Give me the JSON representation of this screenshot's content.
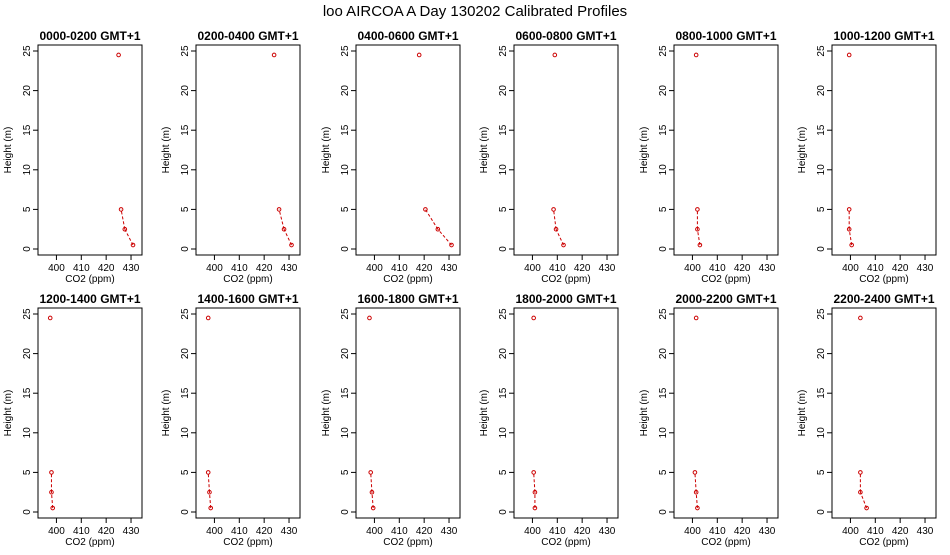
{
  "title": "loo AIRCOA A  Day 130202  Calibrated Profiles",
  "colors": {
    "series": "#cc0000",
    "axis": "#000000",
    "background": "#ffffff"
  },
  "chart_data": [
    {
      "type": "line",
      "title": "0000-0200 GMT+1",
      "xlabel": "CO2 (ppm)",
      "ylabel": "Height (m)",
      "xlim": [
        395,
        432
      ],
      "ylim": [
        0,
        25
      ],
      "xticks": [
        400,
        410,
        420,
        430
      ],
      "yticks": [
        0,
        5,
        10,
        15,
        20,
        25
      ],
      "x": [
        430.8,
        427.5,
        426.0,
        425.0
      ],
      "y": [
        0.5,
        2.5,
        5.0,
        24.5
      ],
      "connect": [
        [
          0,
          1
        ],
        [
          1,
          2
        ]
      ]
    },
    {
      "type": "line",
      "title": "0200-0400 GMT+1",
      "xlabel": "CO2 (ppm)",
      "ylabel": "Height (m)",
      "xlim": [
        395,
        432
      ],
      "ylim": [
        0,
        25
      ],
      "xticks": [
        400,
        410,
        420,
        430
      ],
      "yticks": [
        0,
        5,
        10,
        15,
        20,
        25
      ],
      "x": [
        431.0,
        428.0,
        426.0,
        424.0
      ],
      "y": [
        0.5,
        2.5,
        5.0,
        24.5
      ],
      "connect": [
        [
          0,
          1
        ],
        [
          1,
          2
        ]
      ]
    },
    {
      "type": "line",
      "title": "0400-0600 GMT+1",
      "xlabel": "CO2 (ppm)",
      "ylabel": "Height (m)",
      "xlim": [
        395,
        432
      ],
      "ylim": [
        0,
        25
      ],
      "xticks": [
        400,
        410,
        420,
        430
      ],
      "yticks": [
        0,
        5,
        10,
        15,
        20,
        25
      ],
      "x": [
        431.0,
        425.5,
        420.5,
        418.0
      ],
      "y": [
        0.5,
        2.5,
        5.0,
        24.5
      ],
      "connect": [
        [
          0,
          1
        ],
        [
          1,
          2
        ]
      ]
    },
    {
      "type": "line",
      "title": "0600-0800 GMT+1",
      "xlabel": "CO2 (ppm)",
      "ylabel": "Height (m)",
      "xlim": [
        395,
        432
      ],
      "ylim": [
        0,
        25
      ],
      "xticks": [
        400,
        410,
        420,
        430
      ],
      "yticks": [
        0,
        5,
        10,
        15,
        20,
        25
      ],
      "x": [
        412.5,
        409.5,
        408.5,
        409.0
      ],
      "y": [
        0.5,
        2.5,
        5.0,
        24.5
      ],
      "connect": [
        [
          0,
          1
        ],
        [
          1,
          2
        ]
      ]
    },
    {
      "type": "line",
      "title": "0800-1000 GMT+1",
      "xlabel": "CO2 (ppm)",
      "ylabel": "Height (m)",
      "xlim": [
        395,
        432
      ],
      "ylim": [
        0,
        25
      ],
      "xticks": [
        400,
        410,
        420,
        430
      ],
      "yticks": [
        0,
        5,
        10,
        15,
        20,
        25
      ],
      "x": [
        403.0,
        402.0,
        402.0,
        401.5
      ],
      "y": [
        0.5,
        2.5,
        5.0,
        24.5
      ],
      "connect": [
        [
          0,
          1
        ],
        [
          1,
          2
        ]
      ]
    },
    {
      "type": "line",
      "title": "1000-1200 GMT+1",
      "xlabel": "CO2 (ppm)",
      "ylabel": "Height (m)",
      "xlim": [
        395,
        432
      ],
      "ylim": [
        0,
        25
      ],
      "xticks": [
        400,
        410,
        420,
        430
      ],
      "yticks": [
        0,
        5,
        10,
        15,
        20,
        25
      ],
      "x": [
        400.5,
        399.5,
        399.5,
        399.5
      ],
      "y": [
        0.5,
        2.5,
        5.0,
        24.5
      ],
      "connect": [
        [
          0,
          1
        ],
        [
          1,
          2
        ]
      ]
    },
    {
      "type": "line",
      "title": "1200-1400 GMT+1",
      "xlabel": "CO2 (ppm)",
      "ylabel": "Height (m)",
      "xlim": [
        395,
        432
      ],
      "ylim": [
        0,
        25
      ],
      "xticks": [
        400,
        410,
        420,
        430
      ],
      "yticks": [
        0,
        5,
        10,
        15,
        20,
        25
      ],
      "x": [
        398.5,
        398.0,
        398.0,
        397.5
      ],
      "y": [
        0.5,
        2.5,
        5.0,
        24.5
      ],
      "connect": [
        [
          0,
          1
        ],
        [
          1,
          2
        ]
      ]
    },
    {
      "type": "line",
      "title": "1400-1600 GMT+1",
      "xlabel": "CO2 (ppm)",
      "ylabel": "Height (m)",
      "xlim": [
        395,
        432
      ],
      "ylim": [
        0,
        25
      ],
      "xticks": [
        400,
        410,
        420,
        430
      ],
      "yticks": [
        0,
        5,
        10,
        15,
        20,
        25
      ],
      "x": [
        398.5,
        398.0,
        397.5,
        397.5
      ],
      "y": [
        0.5,
        2.5,
        5.0,
        24.5
      ],
      "connect": [
        [
          0,
          1
        ],
        [
          1,
          2
        ]
      ]
    },
    {
      "type": "line",
      "title": "1600-1800 GMT+1",
      "xlabel": "CO2 (ppm)",
      "ylabel": "Height (m)",
      "xlim": [
        395,
        432
      ],
      "ylim": [
        0,
        25
      ],
      "xticks": [
        400,
        410,
        420,
        430
      ],
      "yticks": [
        0,
        5,
        10,
        15,
        20,
        25
      ],
      "x": [
        399.5,
        399.0,
        398.5,
        398.0
      ],
      "y": [
        0.5,
        2.5,
        5.0,
        24.5
      ],
      "connect": [
        [
          0,
          1
        ],
        [
          1,
          2
        ]
      ]
    },
    {
      "type": "line",
      "title": "1800-2000 GMT+1",
      "xlabel": "CO2 (ppm)",
      "ylabel": "Height (m)",
      "xlim": [
        395,
        432
      ],
      "ylim": [
        0,
        25
      ],
      "xticks": [
        400,
        410,
        420,
        430
      ],
      "yticks": [
        0,
        5,
        10,
        15,
        20,
        25
      ],
      "x": [
        401.0,
        401.0,
        400.5,
        400.5
      ],
      "y": [
        0.5,
        2.5,
        5.0,
        24.5
      ],
      "connect": [
        [
          0,
          1
        ],
        [
          1,
          2
        ]
      ]
    },
    {
      "type": "line",
      "title": "2000-2200 GMT+1",
      "xlabel": "CO2 (ppm)",
      "ylabel": "Height (m)",
      "xlim": [
        395,
        432
      ],
      "ylim": [
        0,
        25
      ],
      "xticks": [
        400,
        410,
        420,
        430
      ],
      "yticks": [
        0,
        5,
        10,
        15,
        20,
        25
      ],
      "x": [
        402.0,
        401.5,
        401.0,
        401.5
      ],
      "y": [
        0.5,
        2.5,
        5.0,
        24.5
      ],
      "connect": [
        [
          0,
          1
        ],
        [
          1,
          2
        ]
      ]
    },
    {
      "type": "line",
      "title": "2200-2400 GMT+1",
      "xlabel": "CO2 (ppm)",
      "ylabel": "Height (m)",
      "xlim": [
        395,
        432
      ],
      "ylim": [
        0,
        25
      ],
      "xticks": [
        400,
        410,
        420,
        430
      ],
      "yticks": [
        0,
        5,
        10,
        15,
        20,
        25
      ],
      "x": [
        406.5,
        404.0,
        404.0,
        404.0
      ],
      "y": [
        0.5,
        2.5,
        5.0,
        24.5
      ],
      "connect": [
        [
          0,
          1
        ],
        [
          1,
          2
        ]
      ]
    }
  ]
}
